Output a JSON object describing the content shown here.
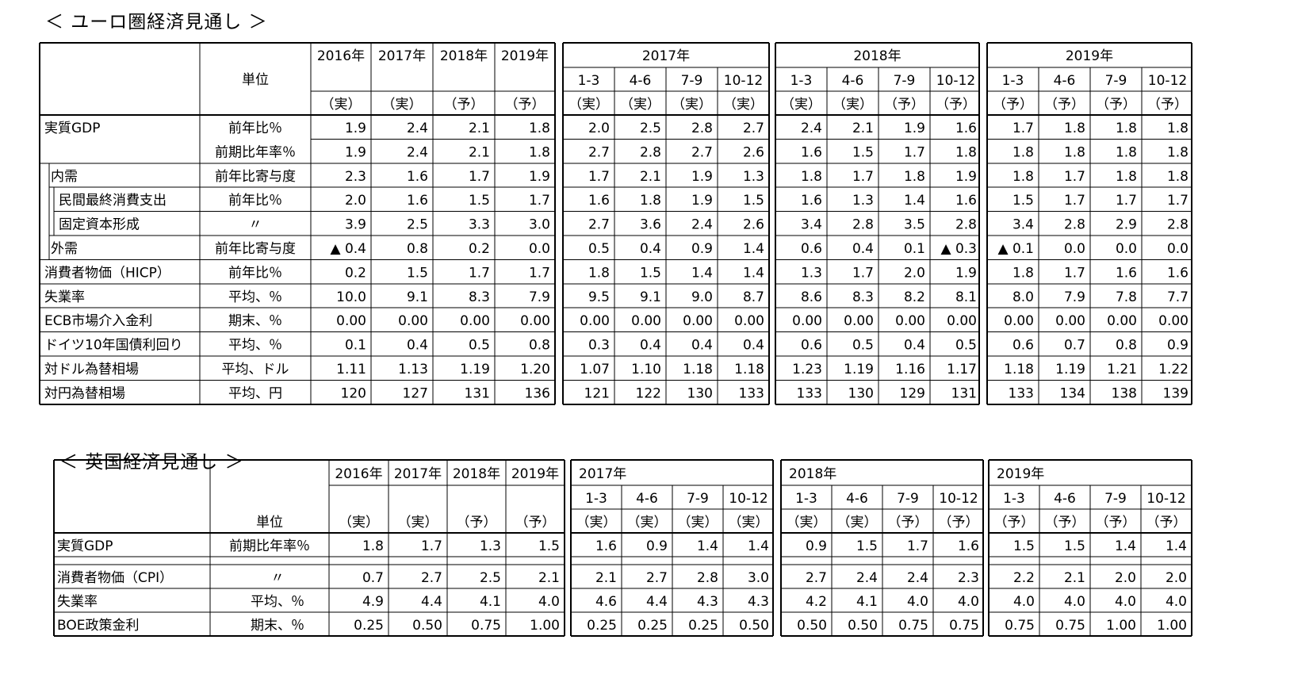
{
  "euro": {
    "title": "＜ ユーロ圏経済見通し ＞",
    "unit_label": "単位",
    "years": [
      "2016年",
      "2017年",
      "2018年",
      "2019年"
    ],
    "year_status": [
      "（実）",
      "（実）",
      "（予）",
      "（予）"
    ],
    "quarter_groups": [
      {
        "label": "2017年",
        "quarters": [
          "1-3",
          "4-6",
          "7-9",
          "10-12"
        ],
        "status": [
          "（実）",
          "（実）",
          "（実）",
          "（実）"
        ]
      },
      {
        "label": "2018年",
        "quarters": [
          "1-3",
          "4-6",
          "7-9",
          "10-12"
        ],
        "status": [
          "（実）",
          "（実）",
          "（予）",
          "（予）"
        ]
      },
      {
        "label": "2019年",
        "quarters": [
          "1-3",
          "4-6",
          "7-9",
          "10-12"
        ],
        "status": [
          "（予）",
          "（予）",
          "（予）",
          "（予）"
        ]
      }
    ],
    "rows": [
      {
        "label": "実質GDP",
        "unit": "前年比％",
        "indent": 0,
        "values": [
          "1.9",
          "2.4",
          "2.1",
          "1.8",
          "2.0",
          "2.5",
          "2.8",
          "2.7",
          "2.4",
          "2.1",
          "1.9",
          "1.6",
          "1.7",
          "1.8",
          "1.8",
          "1.8"
        ]
      },
      {
        "label": "",
        "unit": "前期比年率％",
        "indent": 0,
        "values": [
          "1.9",
          "2.4",
          "2.1",
          "1.8",
          "2.7",
          "2.8",
          "2.7",
          "2.6",
          "1.6",
          "1.5",
          "1.7",
          "1.8",
          "1.8",
          "1.8",
          "1.8",
          "1.8"
        ]
      },
      {
        "label": "内需",
        "unit": "前年比寄与度",
        "indent": 1,
        "values": [
          "2.3",
          "1.6",
          "1.7",
          "1.9",
          "1.7",
          "2.1",
          "1.9",
          "1.3",
          "1.8",
          "1.7",
          "1.8",
          "1.9",
          "1.8",
          "1.7",
          "1.8",
          "1.8"
        ]
      },
      {
        "label": "民間最終消費支出",
        "unit": "前年比％",
        "indent": 2,
        "values": [
          "2.0",
          "1.6",
          "1.5",
          "1.7",
          "1.6",
          "1.8",
          "1.9",
          "1.5",
          "1.6",
          "1.3",
          "1.4",
          "1.6",
          "1.5",
          "1.7",
          "1.7",
          "1.7"
        ]
      },
      {
        "label": "固定資本形成",
        "unit": "〃",
        "indent": 2,
        "values": [
          "3.9",
          "2.5",
          "3.3",
          "3.0",
          "2.7",
          "3.6",
          "2.4",
          "2.6",
          "3.4",
          "2.8",
          "3.5",
          "2.8",
          "3.4",
          "2.8",
          "2.9",
          "2.8"
        ]
      },
      {
        "label": "外需",
        "unit": "前年比寄与度",
        "indent": 1,
        "values": [
          "▲ 0.4",
          "0.8",
          "0.2",
          "0.0",
          "0.5",
          "0.4",
          "0.9",
          "1.4",
          "0.6",
          "0.4",
          "0.1",
          "▲ 0.3",
          "▲ 0.1",
          "0.0",
          "0.0",
          "0.0"
        ]
      },
      {
        "label": "消費者物価（HICP）",
        "unit": "前年比％",
        "indent": 0,
        "values": [
          "0.2",
          "1.5",
          "1.7",
          "1.7",
          "1.8",
          "1.5",
          "1.4",
          "1.4",
          "1.3",
          "1.7",
          "2.0",
          "1.9",
          "1.8",
          "1.7",
          "1.6",
          "1.6"
        ]
      },
      {
        "label": "失業率",
        "unit": "平均、％",
        "indent": 0,
        "values": [
          "10.0",
          "9.1",
          "8.3",
          "7.9",
          "9.5",
          "9.1",
          "9.0",
          "8.7",
          "8.6",
          "8.3",
          "8.2",
          "8.1",
          "8.0",
          "7.9",
          "7.8",
          "7.7"
        ]
      },
      {
        "label": "ECB市場介入金利",
        "unit": "期末、％",
        "indent": 0,
        "values": [
          "0.00",
          "0.00",
          "0.00",
          "0.00",
          "0.00",
          "0.00",
          "0.00",
          "0.00",
          "0.00",
          "0.00",
          "0.00",
          "0.00",
          "0.00",
          "0.00",
          "0.00",
          "0.00"
        ]
      },
      {
        "label": "ドイツ10年国債利回り",
        "unit": "平均、％",
        "indent": 0,
        "values": [
          "0.1",
          "0.4",
          "0.5",
          "0.8",
          "0.3",
          "0.4",
          "0.4",
          "0.4",
          "0.6",
          "0.5",
          "0.4",
          "0.5",
          "0.6",
          "0.7",
          "0.8",
          "0.9"
        ]
      },
      {
        "label": "対ドル為替相場",
        "unit": "平均、ドル",
        "indent": 0,
        "values": [
          "1.11",
          "1.13",
          "1.19",
          "1.20",
          "1.07",
          "1.10",
          "1.18",
          "1.18",
          "1.23",
          "1.19",
          "1.16",
          "1.17",
          "1.18",
          "1.19",
          "1.21",
          "1.22"
        ]
      },
      {
        "label": "対円為替相場",
        "unit": "平均、円",
        "indent": 0,
        "values": [
          "120",
          "127",
          "131",
          "136",
          "121",
          "122",
          "130",
          "133",
          "133",
          "130",
          "129",
          "131",
          "133",
          "134",
          "138",
          "139"
        ]
      }
    ]
  },
  "uk": {
    "title": "＜ 英国経済見通し ＞",
    "unit_label": "単位",
    "years": [
      "2016年",
      "2017年",
      "2018年",
      "2019年"
    ],
    "year_status": [
      "（実）",
      "（実）",
      "（予）",
      "（予）"
    ],
    "quarter_groups": [
      {
        "label": "2017年",
        "quarters": [
          "1-3",
          "4-6",
          "7-9",
          "10-12"
        ],
        "status": [
          "（実）",
          "（実）",
          "（実）",
          "（実）"
        ]
      },
      {
        "label": "2018年",
        "quarters": [
          "1-3",
          "4-6",
          "7-9",
          "10-12"
        ],
        "status": [
          "（実）",
          "（実）",
          "（予）",
          "（予）"
        ]
      },
      {
        "label": "2019年",
        "quarters": [
          "1-3",
          "4-6",
          "7-9",
          "10-12"
        ],
        "status": [
          "（予）",
          "（予）",
          "（予）",
          "（予）"
        ]
      }
    ],
    "rows": [
      {
        "label": "実質GDP",
        "unit": "前期比年率％",
        "values": [
          "1.8",
          "1.7",
          "1.3",
          "1.5",
          "1.6",
          "0.9",
          "1.4",
          "1.4",
          "0.9",
          "1.5",
          "1.7",
          "1.6",
          "1.5",
          "1.5",
          "1.4",
          "1.4"
        ]
      },
      {
        "label": "消費者物価（CPI）",
        "unit": "〃",
        "values": [
          "0.7",
          "2.7",
          "2.5",
          "2.1",
          "2.1",
          "2.7",
          "2.8",
          "3.0",
          "2.7",
          "2.4",
          "2.4",
          "2.3",
          "2.2",
          "2.1",
          "2.0",
          "2.0"
        ]
      },
      {
        "label": "失業率",
        "unit": "平均、％",
        "values": [
          "4.9",
          "4.4",
          "4.1",
          "4.0",
          "4.6",
          "4.4",
          "4.3",
          "4.3",
          "4.2",
          "4.1",
          "4.0",
          "4.0",
          "4.0",
          "4.0",
          "4.0",
          "4.0"
        ]
      },
      {
        "label": "BOE政策金利",
        "unit": "期末、％",
        "values": [
          "0.25",
          "0.50",
          "0.75",
          "1.00",
          "0.25",
          "0.25",
          "0.25",
          "0.50",
          "0.50",
          "0.50",
          "0.75",
          "0.75",
          "0.75",
          "0.75",
          "1.00",
          "1.00"
        ]
      }
    ]
  }
}
